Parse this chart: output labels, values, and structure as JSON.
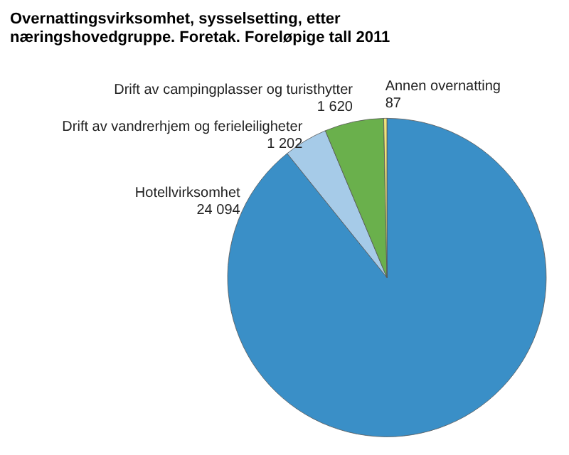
{
  "chart_data": {
    "type": "pie",
    "title": "Overnattingsvirksomhet, sysselsetting, etter næringshovedgruppe. Foretak. Foreløpige tall 2011",
    "categories": [
      "Hotellvirksomhet",
      "Drift av vandrerhjem og ferieleiligheter",
      "Drift av campingplasser og turisthytter",
      "Annen overnatting"
    ],
    "values": [
      24094,
      1202,
      1620,
      87
    ],
    "colors": [
      "#3a8fc7",
      "#a6cbe8",
      "#6ab04c",
      "#f2e27a"
    ],
    "data_labels": true,
    "legend": false
  }
}
